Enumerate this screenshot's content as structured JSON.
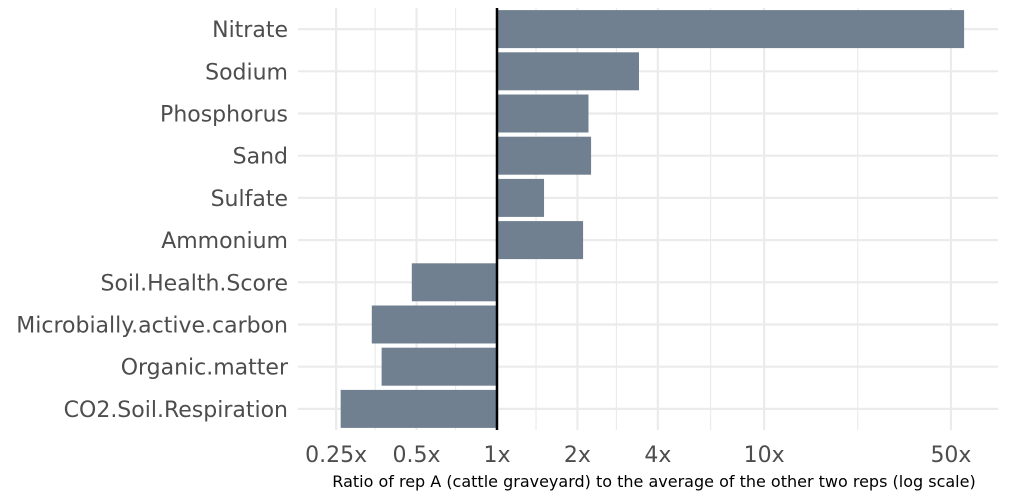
{
  "chart_data": {
    "type": "bar",
    "orientation": "horizontal",
    "categories": [
      "Nitrate",
      "Sodium",
      "Phosphorus",
      "Sand",
      "Sulfate",
      "Ammonium",
      "Soil.Health.Score",
      "Microbially.active.carbon",
      "Organic.matter",
      "CO2.Soil.Respiration"
    ],
    "values": [
      56,
      3.4,
      2.2,
      2.25,
      1.5,
      2.1,
      0.48,
      0.34,
      0.37,
      0.26
    ],
    "xlabel": "Ratio of rep A (cattle graveyard) to the average of the other two reps (log scale)",
    "ylabel": "",
    "x_scale": "log",
    "xlim": [
      0.18,
      75
    ],
    "baseline": 1,
    "x_ticks": [
      {
        "value": 0.25,
        "label": "0.25x"
      },
      {
        "value": 0.5,
        "label": "0.5x"
      },
      {
        "value": 1,
        "label": "1x"
      },
      {
        "value": 2,
        "label": "2x"
      },
      {
        "value": 4,
        "label": "4x"
      },
      {
        "value": 10,
        "label": "10x"
      },
      {
        "value": 50,
        "label": "50x"
      }
    ],
    "x_minor_gridlines": [
      0.35,
      0.7,
      1.4,
      2.8,
      6.3,
      22.4
    ],
    "grid": true,
    "legend": "none",
    "colors": {
      "bar": "#708090",
      "grid": "#ebebeb",
      "baseline": "#000000",
      "background": "#ffffff"
    }
  }
}
